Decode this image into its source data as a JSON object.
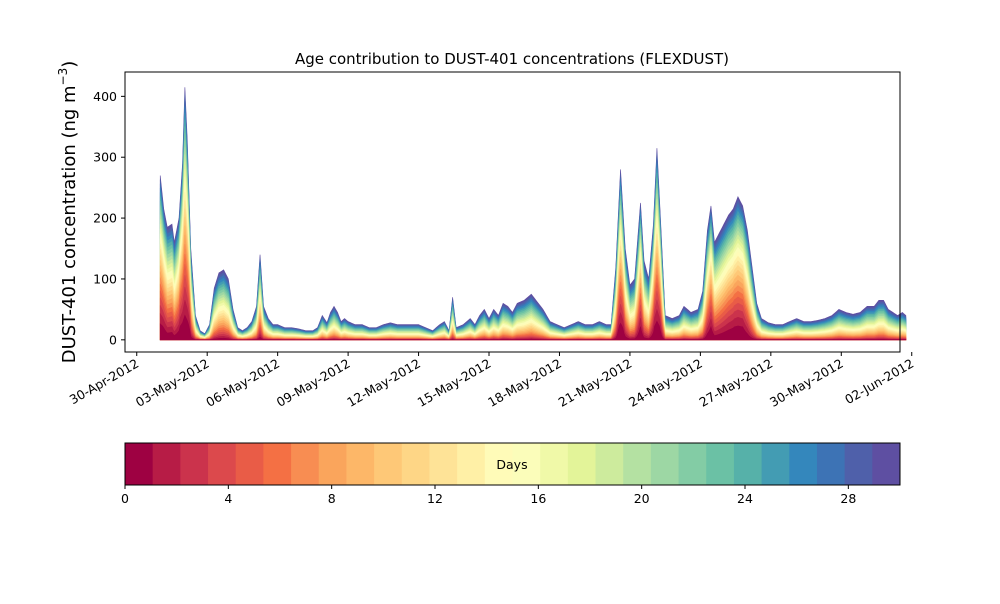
{
  "chart_data": {
    "type": "area",
    "title": "Age contribution to DUST-401 concentrations (FLEXDUST)",
    "ylabel": "DUST-401 concentration (ng m⁻³)",
    "ylabel_main": "DUST-401 concentration (ng m",
    "ylabel_exp": "−3",
    "ylabel_close": ")",
    "xlabel": "",
    "ylim": [
      -20,
      440
    ],
    "yticks": [
      0,
      100,
      200,
      300,
      400
    ],
    "xlim_days": [
      -0.5,
      32.5
    ],
    "x_start": "2012-05-01",
    "x_step_days": 0.25,
    "xticks": [
      {
        "day": 0,
        "label": "30-Apr-2012"
      },
      {
        "day": 3,
        "label": "03-May-2012"
      },
      {
        "day": 6,
        "label": "06-May-2012"
      },
      {
        "day": 9,
        "label": "09-May-2012"
      },
      {
        "day": 12,
        "label": "12-May-2012"
      },
      {
        "day": 15,
        "label": "15-May-2012"
      },
      {
        "day": 18,
        "label": "18-May-2012"
      },
      {
        "day": 21,
        "label": "21-May-2012"
      },
      {
        "day": 24,
        "label": "24-May-2012"
      },
      {
        "day": 27,
        "label": "27-May-2012"
      },
      {
        "day": 30,
        "label": "30-May-2012"
      },
      {
        "day": 33,
        "label": "02-Jun-2012"
      }
    ],
    "total_keypoints": [
      [
        1.0,
        270
      ],
      [
        1.15,
        215
      ],
      [
        1.3,
        185
      ],
      [
        1.5,
        190
      ],
      [
        1.6,
        160
      ],
      [
        1.8,
        200
      ],
      [
        1.95,
        290
      ],
      [
        2.05,
        415
      ],
      [
        2.15,
        330
      ],
      [
        2.3,
        150
      ],
      [
        2.5,
        40
      ],
      [
        2.7,
        15
      ],
      [
        2.9,
        10
      ],
      [
        3.1,
        25
      ],
      [
        3.3,
        85
      ],
      [
        3.5,
        110
      ],
      [
        3.7,
        115
      ],
      [
        3.9,
        100
      ],
      [
        4.1,
        50
      ],
      [
        4.3,
        20
      ],
      [
        4.5,
        15
      ],
      [
        4.7,
        20
      ],
      [
        4.9,
        30
      ],
      [
        5.1,
        55
      ],
      [
        5.25,
        140
      ],
      [
        5.4,
        55
      ],
      [
        5.6,
        35
      ],
      [
        5.8,
        25
      ],
      [
        6.0,
        25
      ],
      [
        6.3,
        20
      ],
      [
        6.6,
        20
      ],
      [
        6.9,
        18
      ],
      [
        7.2,
        15
      ],
      [
        7.5,
        15
      ],
      [
        7.7,
        20
      ],
      [
        7.9,
        40
      ],
      [
        8.1,
        28
      ],
      [
        8.25,
        45
      ],
      [
        8.4,
        55
      ],
      [
        8.55,
        45
      ],
      [
        8.7,
        30
      ],
      [
        8.85,
        35
      ],
      [
        9.0,
        30
      ],
      [
        9.3,
        25
      ],
      [
        9.6,
        25
      ],
      [
        9.9,
        20
      ],
      [
        10.2,
        20
      ],
      [
        10.5,
        25
      ],
      [
        10.8,
        28
      ],
      [
        11.1,
        25
      ],
      [
        11.4,
        25
      ],
      [
        11.7,
        25
      ],
      [
        12.0,
        25
      ],
      [
        12.3,
        20
      ],
      [
        12.6,
        15
      ],
      [
        12.9,
        25
      ],
      [
        13.1,
        30
      ],
      [
        13.3,
        15
      ],
      [
        13.45,
        70
      ],
      [
        13.6,
        20
      ],
      [
        13.9,
        25
      ],
      [
        14.2,
        35
      ],
      [
        14.4,
        25
      ],
      [
        14.6,
        40
      ],
      [
        14.8,
        50
      ],
      [
        15.0,
        35
      ],
      [
        15.2,
        50
      ],
      [
        15.4,
        40
      ],
      [
        15.6,
        60
      ],
      [
        15.8,
        55
      ],
      [
        16.0,
        45
      ],
      [
        16.2,
        60
      ],
      [
        16.5,
        65
      ],
      [
        16.8,
        75
      ],
      [
        17.0,
        65
      ],
      [
        17.3,
        50
      ],
      [
        17.6,
        30
      ],
      [
        17.9,
        25
      ],
      [
        18.2,
        20
      ],
      [
        18.5,
        25
      ],
      [
        18.8,
        30
      ],
      [
        19.1,
        25
      ],
      [
        19.4,
        25
      ],
      [
        19.7,
        30
      ],
      [
        20.0,
        25
      ],
      [
        20.2,
        25
      ],
      [
        20.4,
        120
      ],
      [
        20.6,
        280
      ],
      [
        20.8,
        150
      ],
      [
        21.0,
        90
      ],
      [
        21.2,
        100
      ],
      [
        21.45,
        225
      ],
      [
        21.6,
        130
      ],
      [
        21.8,
        100
      ],
      [
        22.0,
        190
      ],
      [
        22.15,
        315
      ],
      [
        22.3,
        200
      ],
      [
        22.5,
        40
      ],
      [
        22.8,
        35
      ],
      [
        23.1,
        40
      ],
      [
        23.3,
        55
      ],
      [
        23.6,
        45
      ],
      [
        23.9,
        50
      ],
      [
        24.1,
        80
      ],
      [
        24.3,
        180
      ],
      [
        24.45,
        220
      ],
      [
        24.6,
        160
      ],
      [
        24.8,
        175
      ],
      [
        25.0,
        190
      ],
      [
        25.2,
        205
      ],
      [
        25.4,
        215
      ],
      [
        25.6,
        235
      ],
      [
        25.8,
        220
      ],
      [
        26.0,
        180
      ],
      [
        26.2,
        120
      ],
      [
        26.4,
        60
      ],
      [
        26.6,
        35
      ],
      [
        26.9,
        28
      ],
      [
        27.2,
        25
      ],
      [
        27.5,
        25
      ],
      [
        27.8,
        30
      ],
      [
        28.1,
        35
      ],
      [
        28.4,
        30
      ],
      [
        28.7,
        30
      ],
      [
        29.0,
        32
      ],
      [
        29.3,
        35
      ],
      [
        29.6,
        40
      ],
      [
        29.9,
        50
      ],
      [
        30.2,
        45
      ],
      [
        30.5,
        42
      ],
      [
        30.8,
        45
      ],
      [
        31.1,
        55
      ],
      [
        31.4,
        55
      ],
      [
        31.6,
        65
      ],
      [
        31.8,
        65
      ],
      [
        32.0,
        50
      ],
      [
        32.2,
        45
      ],
      [
        32.4,
        40
      ],
      [
        32.6,
        45
      ],
      [
        32.75,
        40
      ]
    ],
    "colorbar": {
      "label": "Days",
      "min": 0,
      "max": 30,
      "ticks": [
        0,
        4,
        8,
        12,
        16,
        20,
        24,
        28
      ],
      "colors": [
        "#9e0142",
        "#b71c46",
        "#cb334c",
        "#dc494c",
        "#e95c47",
        "#f47044",
        "#f88d52",
        "#faa55c",
        "#fdb768",
        "#fec877",
        "#fed686",
        "#fee397",
        "#fff0a6",
        "#fffbb8",
        "#fbfdba",
        "#f0f9a8",
        "#e3f499",
        "#cdeb9d",
        "#b4e1a2",
        "#9dd7a4",
        "#83cca5",
        "#6bc1a5",
        "#56b1a9",
        "#439cb3",
        "#3487bc",
        "#3d73b5",
        "#4f60aa",
        "#5e4fa2"
      ]
    }
  }
}
